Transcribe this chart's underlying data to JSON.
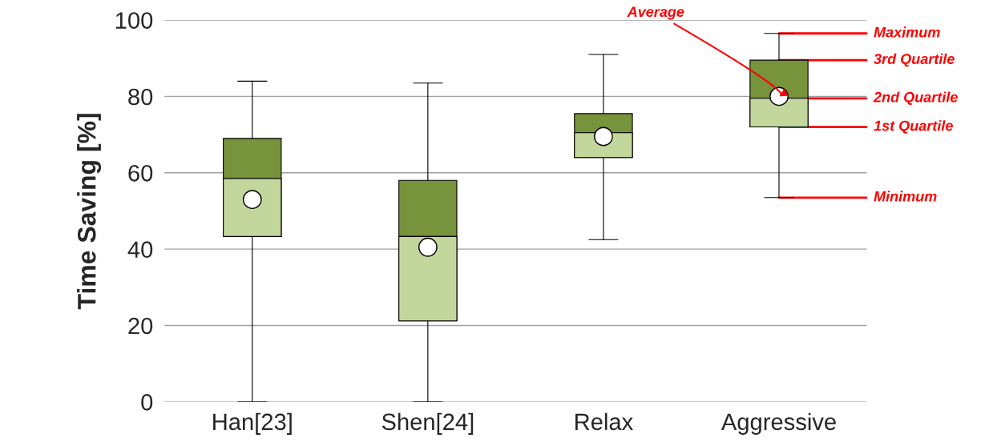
{
  "chart_data": {
    "type": "box",
    "ylabel": "Time Saving [%]",
    "categories": [
      "Han[23]",
      "Shen[24]",
      "Relax",
      "Aggressive"
    ],
    "boxes": [
      {
        "low": 0,
        "q1": 43.3,
        "median": 58.5,
        "q3": 69,
        "high": 84,
        "mean": 53
      },
      {
        "low": 0,
        "q1": 21.2,
        "median": 43.3,
        "q3": 58,
        "high": 83.5,
        "mean": 40.5
      },
      {
        "low": 42.5,
        "q1": 64,
        "median": 70.5,
        "q3": 75.5,
        "high": 91,
        "mean": 69.5
      },
      {
        "low": 53.5,
        "q1": 72,
        "median": 79.5,
        "q3": 89.5,
        "high": 96.5,
        "mean": 80
      }
    ],
    "color": "#c3d69b",
    "colors": [
      "#77933c",
      "#77933c",
      "#77933c",
      "#77933c"
    ],
    "ylim": [
      0,
      100
    ],
    "yticks": [
      0,
      20,
      40,
      60,
      80,
      100
    ],
    "grid": "y",
    "legend": false,
    "marker": "circle",
    "annotations": [
      {
        "text": "Average",
        "x": "Aggressive",
        "y": 80
      },
      {
        "text": "Maximum",
        "x": "Aggressive",
        "y": 96.5
      },
      {
        "text": "3rd Quartile",
        "x": "Aggressive",
        "y": 89.5
      },
      {
        "text": "2nd Quartile",
        "x": "Aggressive",
        "y": 79.5
      },
      {
        "text": "1st Quartile",
        "x": "Aggressive",
        "y": 72
      },
      {
        "text": "Minimum",
        "x": "Aggressive",
        "y": 53.5
      }
    ]
  }
}
